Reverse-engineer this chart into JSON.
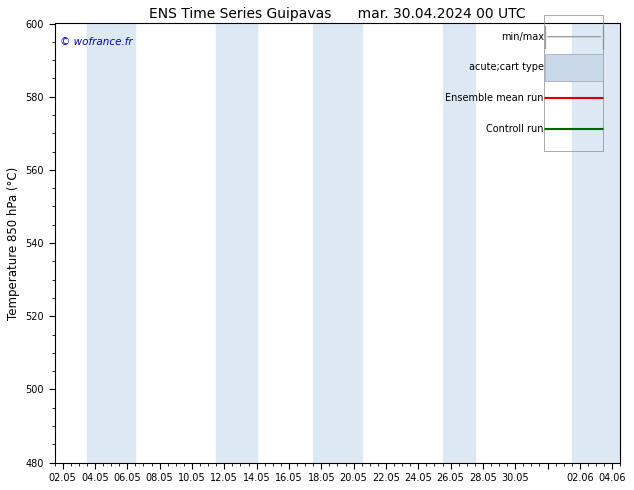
{
  "title_left": "ENS Time Series Guipavas",
  "title_right": "mar. 30.04.2024 00 UTC",
  "ylabel": "Temperature 850 hPa (°C)",
  "ylim": [
    480,
    600
  ],
  "yticks": [
    480,
    500,
    520,
    540,
    560,
    580,
    600
  ],
  "xtick_labels": [
    "02.05",
    "04.05",
    "06.05",
    "08.05",
    "10.05",
    "12.05",
    "14.05",
    "16.05",
    "18.05",
    "20.05",
    "22.05",
    "24.05",
    "26.05",
    "28.05",
    "30.05",
    "",
    "02.06",
    "04.06"
  ],
  "copyright": "© wofrance.fr",
  "background_color": "#ffffff",
  "plot_bg_color": "#ffffff",
  "shading_color": "#dce9f5",
  "legend_entries": [
    "min/max",
    "acute;cart type",
    "Ensemble mean run",
    "Controll run"
  ],
  "title_fontsize": 10,
  "tick_fontsize": 7,
  "ylabel_fontsize": 8.5
}
